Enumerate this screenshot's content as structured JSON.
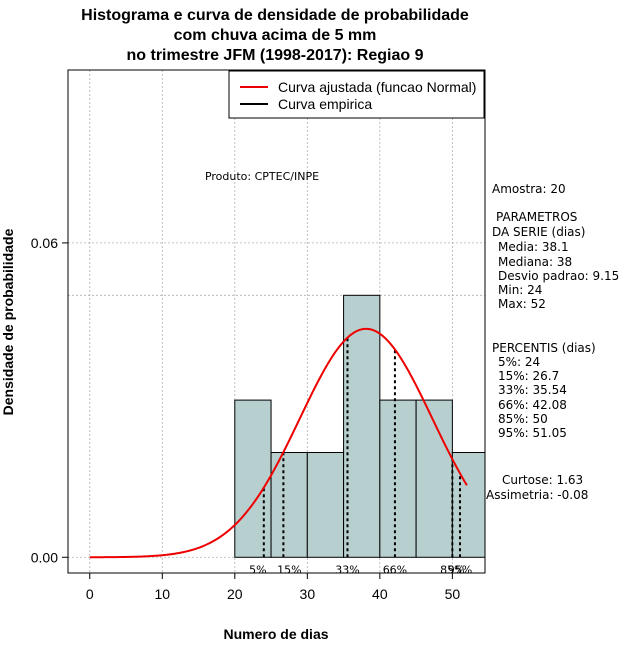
{
  "chart_data": {
    "type": "bar",
    "title_lines": [
      "Histograma e curva de densidade de probabilidade",
      "com chuva acima de 5 mm",
      "no trimestre JFM (1998-2017): Regiao 9"
    ],
    "xlabel": "Numero de dias",
    "ylabel": "Densidade de probabilidade",
    "xlim": [
      -3,
      54.5
    ],
    "ylim": [
      -0.003,
      0.093
    ],
    "x_ticks": [
      0,
      10,
      20,
      30,
      40,
      50
    ],
    "y_ticks": [
      0.0,
      0.06
    ],
    "y_tick_labels": [
      "0.00",
      "0.06"
    ],
    "bins": [
      {
        "from": 20,
        "to": 25,
        "density": 0.03
      },
      {
        "from": 25,
        "to": 30,
        "density": 0.02
      },
      {
        "from": 30,
        "to": 35,
        "density": 0.02
      },
      {
        "from": 35,
        "to": 40,
        "density": 0.05
      },
      {
        "from": 40,
        "to": 45,
        "density": 0.03
      },
      {
        "from": 45,
        "to": 50,
        "density": 0.03
      },
      {
        "from": 50,
        "to": 55,
        "density": 0.02
      }
    ],
    "normal_curve": {
      "mean": 38.1,
      "sd": 9.15,
      "x_from": 0,
      "x_to": 52
    },
    "percentile_lines": [
      {
        "label": "5%",
        "x": 24
      },
      {
        "label": "15%",
        "x": 26.7
      },
      {
        "label": "33%",
        "x": 35.54
      },
      {
        "label": "66%",
        "x": 42.08
      },
      {
        "label": "85%",
        "x": 50
      },
      {
        "label": "95%",
        "x": 51.05
      }
    ],
    "legend": [
      {
        "label": "Curva ajustada (funcao Normal)",
        "color": "#ee0000"
      },
      {
        "label": "Curva empirica",
        "color": "#000000"
      }
    ],
    "product_label": "Produto: CPTEC/INPE",
    "stats": [
      "Amostra: 20",
      "PARAMETROS",
      "DA SERIE (dias)",
      "Media: 38.1",
      "Mediana: 38",
      "Desvio padrao: 9.15",
      "Min: 24",
      "Max: 52",
      "PERCENTIS (dias)",
      "5%: 24",
      "15%: 26.7",
      "33%: 35.54",
      "66%: 42.08",
      "85%: 50",
      "95%: 51.05",
      "Curtose: 1.63",
      "Assimetria: -0.08"
    ],
    "colors": {
      "bar_fill": "#b8cfcf",
      "curve": "#ee0000",
      "grid": "#b0b0b0"
    }
  }
}
